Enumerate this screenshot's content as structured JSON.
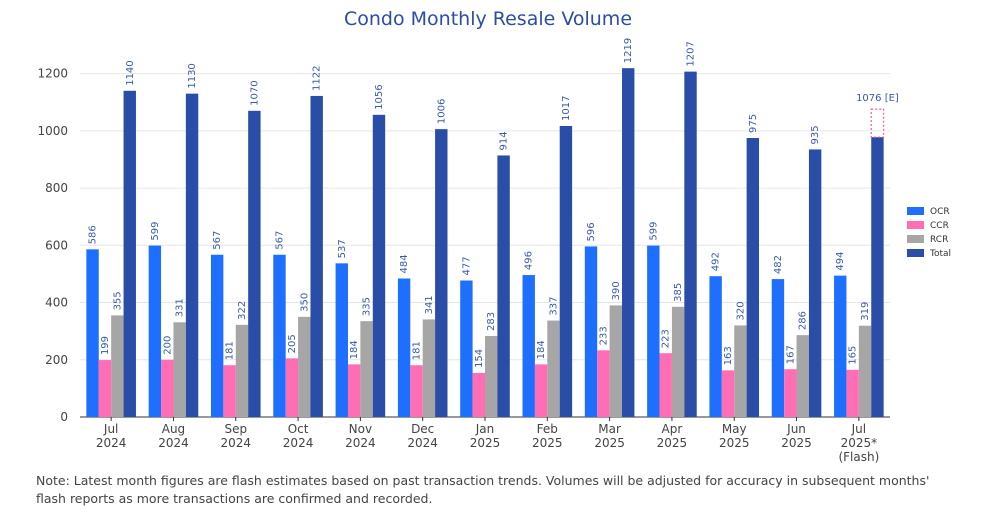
{
  "chart_data": {
    "type": "bar",
    "title": "Condo Monthly Resale Volume",
    "categories": [
      [
        "Jul",
        "2024"
      ],
      [
        "Aug",
        "2024"
      ],
      [
        "Sep",
        "2024"
      ],
      [
        "Oct",
        "2024"
      ],
      [
        "Nov",
        "2024"
      ],
      [
        "Dec",
        "2024"
      ],
      [
        "Jan",
        "2025"
      ],
      [
        "Feb",
        "2025"
      ],
      [
        "Mar",
        "2025"
      ],
      [
        "Apr",
        "2025"
      ],
      [
        "May",
        "2025"
      ],
      [
        "Jun",
        "2025"
      ],
      [
        "Jul",
        "2025*",
        "(Flash)"
      ]
    ],
    "series": [
      {
        "name": "OCR",
        "color": "#1f6fff",
        "values": [
          586,
          599,
          567,
          567,
          537,
          484,
          477,
          496,
          596,
          599,
          492,
          482,
          494
        ]
      },
      {
        "name": "CCR",
        "color": "#ff6eb4",
        "values": [
          199,
          200,
          181,
          205,
          184,
          181,
          154,
          184,
          233,
          223,
          163,
          167,
          165
        ]
      },
      {
        "name": "RCR",
        "color": "#a6a6a6",
        "values": [
          355,
          331,
          322,
          350,
          335,
          341,
          283,
          337,
          390,
          385,
          320,
          286,
          319
        ]
      },
      {
        "name": "Total",
        "color": "#2a4da8",
        "values": [
          1140,
          1130,
          1070,
          1122,
          1056,
          1006,
          914,
          1017,
          1219,
          1207,
          975,
          935,
          978
        ]
      }
    ],
    "flash_estimate": {
      "category_index": 12,
      "value": 1076,
      "label": "1076 [E]",
      "color": "#ff5c8a"
    },
    "ylim": [
      0,
      1300
    ],
    "yticks": [
      0,
      200,
      400,
      600,
      800,
      1000,
      1200
    ],
    "legend_position": "right",
    "grid": true
  },
  "note": "Note: Latest month figures are flash estimates based on past transaction trends. Volumes will be adjusted for accuracy in subsequent months' flash reports as more transactions are confirmed and recorded."
}
